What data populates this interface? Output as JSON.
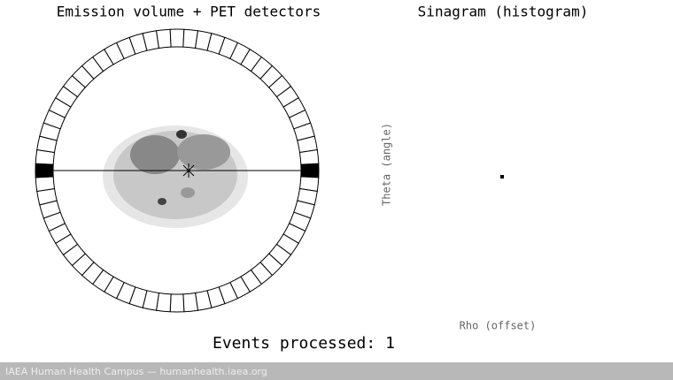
{
  "left_panel": {
    "title": "Emission volume + PET detectors"
  },
  "right_panel": {
    "title": "Sinagram (histogram)",
    "y_label": "Theta (angle)",
    "x_label": "Rho (offset)"
  },
  "status": {
    "label": "Events processed:",
    "count": 1
  },
  "footer": {
    "text": "IAEA Human Health Campus — humanhealth.iaea.org"
  }
}
